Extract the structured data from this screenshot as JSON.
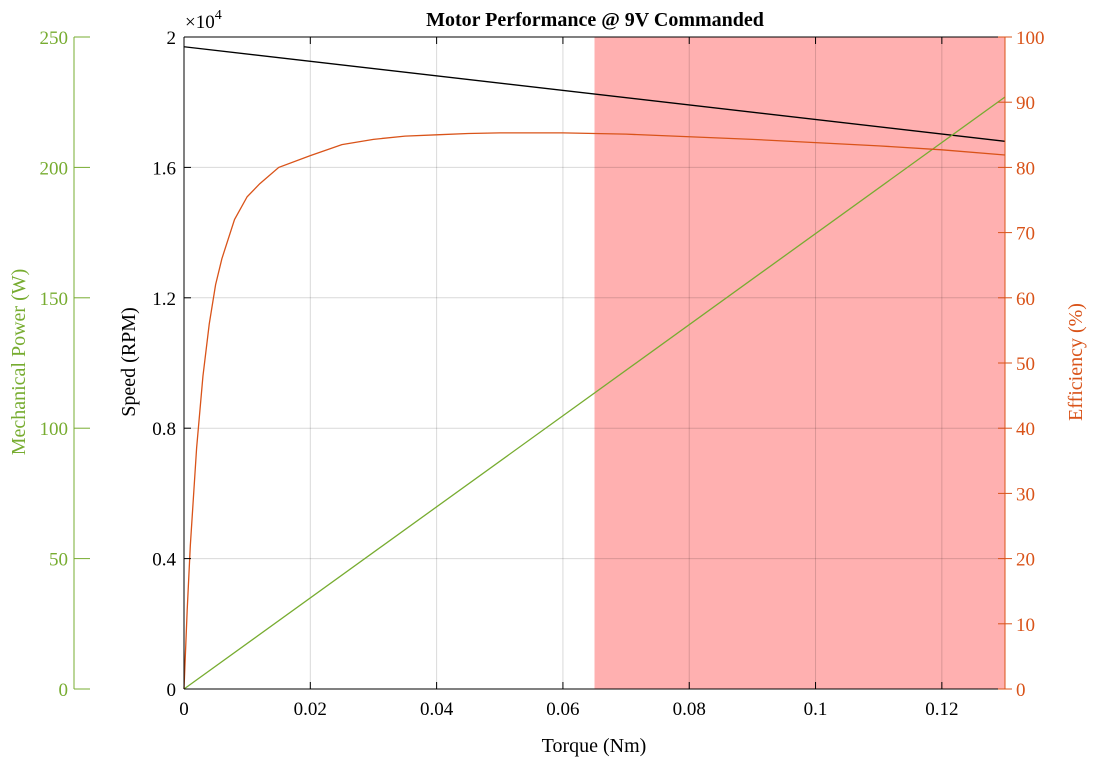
{
  "chart_data": {
    "type": "line",
    "title": "Motor Performance @ 9V Commanded",
    "xlabel": "Torque (Nm)",
    "xlim": [
      0,
      0.13
    ],
    "xticks": [
      0,
      0.02,
      0.04,
      0.06,
      0.08,
      0.1,
      0.12
    ],
    "xtick_labels": [
      "0",
      "0.02",
      "0.04",
      "0.06",
      "0.08",
      "0.1",
      "0.12"
    ],
    "grid": true,
    "exponent_label": {
      "base": "×10",
      "power": "4"
    },
    "axes": {
      "speed": {
        "label": "Speed (RPM)",
        "ylim": [
          0,
          20000
        ],
        "ticks": [
          0,
          4000,
          8000,
          12000,
          16000,
          20000
        ],
        "tick_labels": [
          "0",
          "0.4",
          "0.8",
          "1.2",
          "1.6",
          "2"
        ],
        "color": "#000000"
      },
      "power": {
        "label": "Mechanical Power (W)",
        "ylim": [
          0,
          250
        ],
        "ticks": [
          0,
          50,
          100,
          150,
          200,
          250
        ],
        "tick_labels": [
          "0",
          "50",
          "100",
          "150",
          "200",
          "250"
        ],
        "color": "#77ac30"
      },
      "efficiency": {
        "label": "Efficiency (%)",
        "ylim": [
          0,
          100
        ],
        "ticks": [
          0,
          10,
          20,
          30,
          40,
          50,
          60,
          70,
          80,
          90,
          100
        ],
        "tick_labels": [
          "0",
          "10",
          "20",
          "30",
          "40",
          "50",
          "60",
          "70",
          "80",
          "90",
          "100"
        ],
        "color": "#d95319"
      }
    },
    "series": [
      {
        "axis": "speed",
        "color": "#000000",
        "x": [
          0,
          0.13
        ],
        "y": [
          19700,
          16800
        ]
      },
      {
        "axis": "power",
        "color": "#77ac30",
        "x": [
          0,
          0.13
        ],
        "y": [
          0,
          227
        ]
      },
      {
        "axis": "efficiency",
        "color": "#d95319",
        "x": [
          0,
          0.0005,
          0.001,
          0.002,
          0.003,
          0.004,
          0.005,
          0.006,
          0.008,
          0.01,
          0.012,
          0.015,
          0.02,
          0.025,
          0.03,
          0.035,
          0.04,
          0.045,
          0.05,
          0.055,
          0.06,
          0.065,
          0.07,
          0.08,
          0.09,
          0.1,
          0.11,
          0.12,
          0.13
        ],
        "y": [
          0,
          12,
          22,
          37,
          48,
          56,
          62,
          66,
          72,
          75.5,
          77.5,
          80,
          81.8,
          83.5,
          84.3,
          84.8,
          85.0,
          85.2,
          85.3,
          85.3,
          85.3,
          85.2,
          85.1,
          84.7,
          84.3,
          83.8,
          83.3,
          82.7,
          81.9
        ]
      }
    ],
    "shaded_region": {
      "x_start": 0.065,
      "x_end": 0.13,
      "color": "#ff8080",
      "opacity": 0.62
    }
  }
}
